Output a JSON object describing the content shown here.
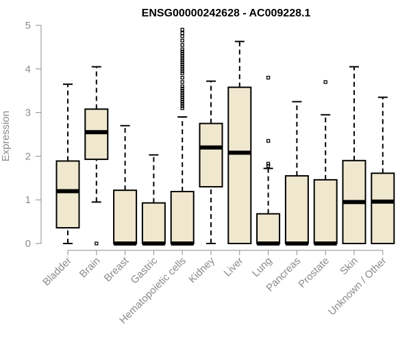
{
  "chart_data": {
    "type": "boxplot",
    "title": "ENSG00000242628 - AC009228.1",
    "ylabel": "Expression",
    "xlabel": "",
    "ylim": [
      0,
      5
    ],
    "yticks": [
      0,
      1,
      2,
      3,
      4,
      5
    ],
    "grid": false,
    "legend": "none",
    "colors": {
      "box_fill": "#efe8cf",
      "box_stroke": "#000000",
      "axis": "#8a8a8a"
    },
    "categories": [
      "Bladder",
      "Brain",
      "Breast",
      "Gastric",
      "Hematopoietic cells",
      "Kidney",
      "Liver",
      "Lung",
      "Pancreas",
      "Prostate",
      "Skin",
      "Unknown / Other"
    ],
    "boxes": [
      {
        "category": "Bladder",
        "lower_whisker": 0.0,
        "q1": 0.36,
        "median": 1.2,
        "q3": 1.89,
        "upper_whisker": 3.65,
        "outliers": []
      },
      {
        "category": "Brain",
        "lower_whisker": 0.95,
        "q1": 1.93,
        "median": 2.55,
        "q3": 3.08,
        "upper_whisker": 4.05,
        "outliers": [
          0.0
        ]
      },
      {
        "category": "Breast",
        "lower_whisker": 0.0,
        "q1": 0.0,
        "median": 0.0,
        "q3": 1.22,
        "upper_whisker": 2.7,
        "outliers": []
      },
      {
        "category": "Gastric",
        "lower_whisker": 0.0,
        "q1": 0.0,
        "median": 0.0,
        "q3": 0.93,
        "upper_whisker": 2.03,
        "outliers": []
      },
      {
        "category": "Hematopoietic cells",
        "lower_whisker": 0.0,
        "q1": 0.0,
        "median": 0.0,
        "q3": 1.19,
        "upper_whisker": 2.9,
        "outliers": [
          3.1,
          3.15,
          3.2,
          3.25,
          3.3,
          3.35,
          3.4,
          3.45,
          3.5,
          3.55,
          3.6,
          3.7,
          3.8,
          3.9,
          3.95,
          4.0,
          4.05,
          4.1,
          4.15,
          4.2,
          4.25,
          4.3,
          4.35,
          4.4,
          4.45,
          4.55,
          4.65,
          4.75,
          4.82,
          4.9
        ]
      },
      {
        "category": "Kidney",
        "lower_whisker": 0.0,
        "q1": 1.3,
        "median": 2.2,
        "q3": 2.75,
        "upper_whisker": 3.72,
        "outliers": []
      },
      {
        "category": "Liver",
        "lower_whisker": 0.0,
        "q1": 0.0,
        "median": 2.08,
        "q3": 3.58,
        "upper_whisker": 4.63,
        "outliers": []
      },
      {
        "category": "Lung",
        "lower_whisker": 0.0,
        "q1": 0.0,
        "median": 0.0,
        "q3": 0.68,
        "upper_whisker": 1.72,
        "outliers": [
          1.78,
          1.83,
          2.35,
          3.8
        ]
      },
      {
        "category": "Pancreas",
        "lower_whisker": 0.0,
        "q1": 0.0,
        "median": 0.0,
        "q3": 1.55,
        "upper_whisker": 3.25,
        "outliers": []
      },
      {
        "category": "Prostate",
        "lower_whisker": 0.0,
        "q1": 0.0,
        "median": 0.0,
        "q3": 1.46,
        "upper_whisker": 2.95,
        "outliers": [
          3.7
        ]
      },
      {
        "category": "Skin",
        "lower_whisker": 0.0,
        "q1": 0.0,
        "median": 0.95,
        "q3": 1.9,
        "upper_whisker": 4.05,
        "outliers": []
      },
      {
        "category": "Unknown / Other",
        "lower_whisker": 0.0,
        "q1": 0.0,
        "median": 0.96,
        "q3": 1.61,
        "upper_whisker": 3.35,
        "outliers": []
      }
    ]
  }
}
